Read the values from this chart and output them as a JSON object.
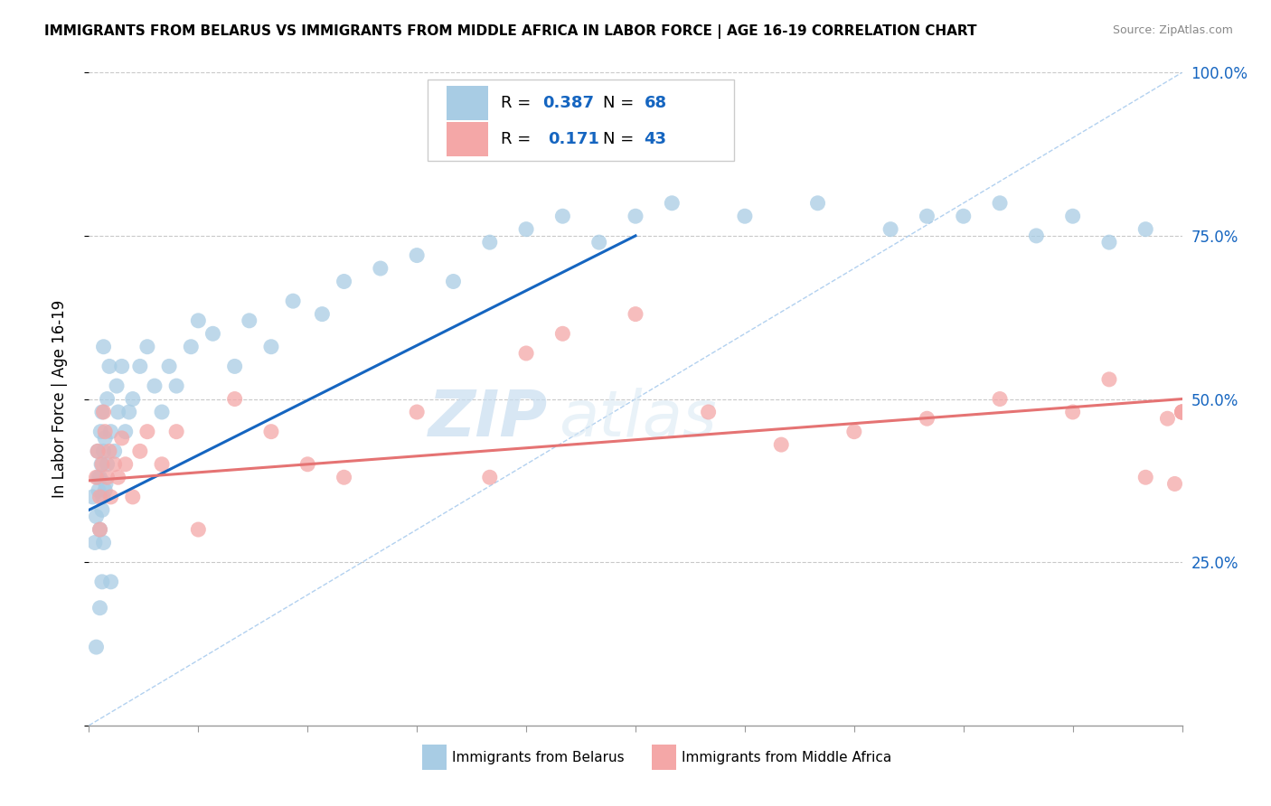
{
  "title": "IMMIGRANTS FROM BELARUS VS IMMIGRANTS FROM MIDDLE AFRICA IN LABOR FORCE | AGE 16-19 CORRELATION CHART",
  "source": "Source: ZipAtlas.com",
  "ylabel": "In Labor Force | Age 16-19",
  "xlim": [
    0.0,
    15.0
  ],
  "ylim": [
    0.0,
    100.0
  ],
  "belarus_color": "#a8cce4",
  "middle_africa_color": "#f4a7a7",
  "trend_blue": "#1565c0",
  "trend_pink": "#e57373",
  "watermark_zip": "ZIP",
  "watermark_atlas": "atlas",
  "belarus_scatter_x": [
    0.05,
    0.08,
    0.1,
    0.1,
    0.12,
    0.12,
    0.13,
    0.15,
    0.15,
    0.15,
    0.16,
    0.17,
    0.18,
    0.18,
    0.18,
    0.19,
    0.2,
    0.2,
    0.2,
    0.22,
    0.22,
    0.23,
    0.25,
    0.25,
    0.28,
    0.3,
    0.3,
    0.35,
    0.38,
    0.4,
    0.45,
    0.5,
    0.55,
    0.6,
    0.7,
    0.8,
    0.9,
    1.0,
    1.1,
    1.2,
    1.4,
    1.5,
    1.7,
    2.0,
    2.2,
    2.5,
    2.8,
    3.2,
    3.5,
    4.0,
    4.5,
    5.0,
    5.5,
    6.0,
    6.5,
    7.0,
    7.5,
    8.0,
    9.0,
    10.0,
    11.0,
    11.5,
    12.0,
    12.5,
    13.0,
    13.5,
    14.0,
    14.5
  ],
  "belarus_scatter_y": [
    35.0,
    28.0,
    32.0,
    12.0,
    38.0,
    42.0,
    36.0,
    30.0,
    38.0,
    18.0,
    45.0,
    40.0,
    33.0,
    22.0,
    48.0,
    35.0,
    42.0,
    28.0,
    58.0,
    36.0,
    44.0,
    37.0,
    40.0,
    50.0,
    55.0,
    45.0,
    22.0,
    42.0,
    52.0,
    48.0,
    55.0,
    45.0,
    48.0,
    50.0,
    55.0,
    58.0,
    52.0,
    48.0,
    55.0,
    52.0,
    58.0,
    62.0,
    60.0,
    55.0,
    62.0,
    58.0,
    65.0,
    63.0,
    68.0,
    70.0,
    72.0,
    68.0,
    74.0,
    76.0,
    78.0,
    74.0,
    78.0,
    80.0,
    78.0,
    80.0,
    76.0,
    78.0,
    78.0,
    80.0,
    75.0,
    78.0,
    74.0,
    76.0
  ],
  "middle_africa_scatter_x": [
    0.1,
    0.12,
    0.15,
    0.15,
    0.18,
    0.2,
    0.22,
    0.25,
    0.28,
    0.3,
    0.35,
    0.4,
    0.45,
    0.5,
    0.6,
    0.7,
    0.8,
    1.0,
    1.2,
    1.5,
    2.0,
    2.5,
    3.0,
    3.5,
    4.5,
    5.5,
    6.0,
    6.5,
    7.5,
    8.5,
    9.5,
    10.5,
    11.5,
    12.5,
    13.5,
    14.0,
    14.5,
    14.8,
    14.9,
    15.0,
    15.0,
    15.0,
    15.0
  ],
  "middle_africa_scatter_y": [
    38.0,
    42.0,
    35.0,
    30.0,
    40.0,
    48.0,
    45.0,
    38.0,
    42.0,
    35.0,
    40.0,
    38.0,
    44.0,
    40.0,
    35.0,
    42.0,
    45.0,
    40.0,
    45.0,
    30.0,
    50.0,
    45.0,
    40.0,
    38.0,
    48.0,
    38.0,
    57.0,
    60.0,
    63.0,
    48.0,
    43.0,
    45.0,
    47.0,
    50.0,
    48.0,
    53.0,
    38.0,
    47.0,
    37.0,
    48.0,
    48.0,
    48.0,
    48.0
  ],
  "blue_trend_x0": 0.0,
  "blue_trend_y0": 33.0,
  "blue_trend_x1": 7.5,
  "blue_trend_y1": 75.0,
  "pink_trend_x0": 0.0,
  "pink_trend_y0": 37.5,
  "pink_trend_x1": 15.0,
  "pink_trend_y1": 50.0
}
